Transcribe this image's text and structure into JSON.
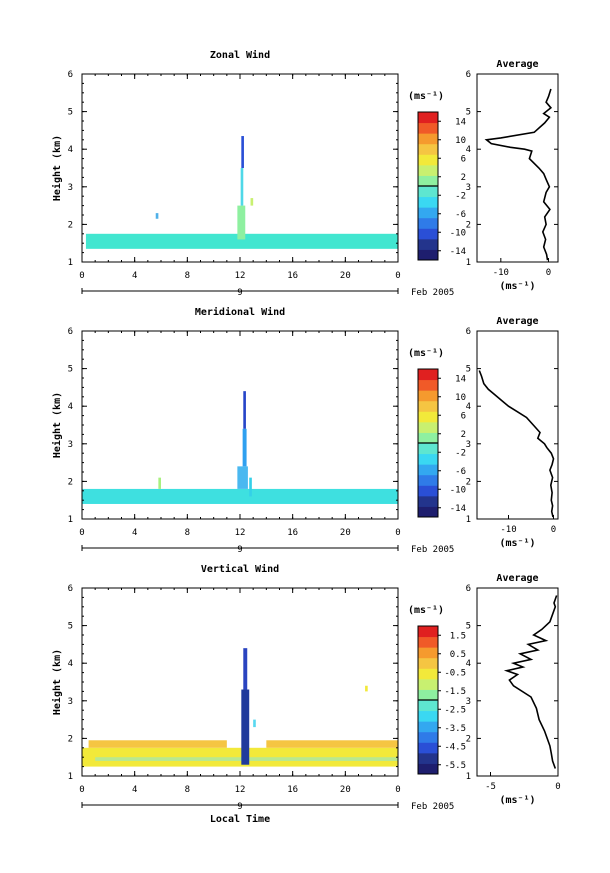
{
  "chart_data": [
    {
      "type": "heatmap",
      "title": "Zonal Wind",
      "xlabel": "",
      "ylabel": "Height (km)",
      "xlim": [
        0,
        24
      ],
      "ylim": [
        1,
        6
      ],
      "xticks": [
        "0",
        "4",
        "8",
        "12",
        "16",
        "20",
        "0"
      ],
      "yticks": [
        "1",
        "2",
        "3",
        "4",
        "5",
        "6"
      ],
      "date_label": "9",
      "month_label": "Feb 2005",
      "colorbar": {
        "unit": "(ms⁻¹)",
        "min": -16,
        "max": 16,
        "ticks": [
          "14",
          "10",
          "6",
          "2",
          "-2",
          "-6",
          "-10",
          "-14"
        ]
      },
      "layers": [
        {
          "x0": 0.3,
          "x1": 24,
          "y0": 1.35,
          "y1": 1.75,
          "color": "#42e6d0"
        },
        {
          "x0": 11.8,
          "x1": 12.4,
          "y0": 1.6,
          "y1": 2.5,
          "color": "#8ef0a0"
        },
        {
          "x0": 12.05,
          "x1": 12.25,
          "y0": 2.5,
          "y1": 3.5,
          "color": "#4fd8e8"
        },
        {
          "x0": 12.1,
          "x1": 12.3,
          "y0": 3.5,
          "y1": 4.35,
          "color": "#2a4fd6"
        },
        {
          "x0": 5.6,
          "x1": 5.8,
          "y0": 2.15,
          "y1": 2.3,
          "color": "#4fb0e8"
        },
        {
          "x0": 12.8,
          "x1": 13.0,
          "y0": 2.5,
          "y1": 2.7,
          "color": "#c8f070"
        }
      ],
      "profile": {
        "title": "Average",
        "xlabel": "(ms⁻¹)",
        "xlim": [
          -15,
          2
        ],
        "xticks": [
          "-10",
          "0"
        ],
        "x": [
          0.5,
          0.0,
          -0.5,
          0.5,
          -1.0,
          0.2,
          -0.8,
          -3.0,
          -10.0,
          -13.0,
          -12.0,
          -8.0,
          -5.0,
          -3.5,
          -4.0,
          -2.0,
          -1.0,
          -0.5,
          0.2,
          -0.5,
          -1.0,
          0.3,
          -0.8,
          -0.5,
          -1.2,
          -0.6,
          -1.0,
          -0.4,
          -0.2
        ],
        "y": [
          5.6,
          5.4,
          5.25,
          5.1,
          4.95,
          4.85,
          4.7,
          4.45,
          4.3,
          4.25,
          4.15,
          4.05,
          4.0,
          3.95,
          3.75,
          3.5,
          3.35,
          3.2,
          3.0,
          2.85,
          2.6,
          2.4,
          2.2,
          2.0,
          1.8,
          1.6,
          1.4,
          1.2,
          1.05
        ]
      }
    },
    {
      "type": "heatmap",
      "title": "Meridional Wind",
      "xlabel": "",
      "ylabel": "Height (km)",
      "xlim": [
        0,
        24
      ],
      "ylim": [
        1,
        6
      ],
      "xticks": [
        "0",
        "4",
        "8",
        "12",
        "16",
        "20",
        "0"
      ],
      "yticks": [
        "1",
        "2",
        "3",
        "4",
        "5",
        "6"
      ],
      "date_label": "9",
      "month_label": "Feb 2005",
      "colorbar": {
        "unit": "(ms⁻¹)",
        "min": -16,
        "max": 16,
        "ticks": [
          "14",
          "10",
          "6",
          "2",
          "-2",
          "-6",
          "-10",
          "-14"
        ]
      },
      "layers": [
        {
          "x0": 0.0,
          "x1": 24,
          "y0": 1.4,
          "y1": 1.8,
          "color": "#3ee0e0"
        },
        {
          "x0": 5.8,
          "x1": 6.0,
          "y0": 1.8,
          "y1": 2.1,
          "color": "#a8f080"
        },
        {
          "x0": 11.8,
          "x1": 12.6,
          "y0": 1.8,
          "y1": 2.4,
          "color": "#4ab8f0"
        },
        {
          "x0": 12.2,
          "x1": 12.5,
          "y0": 2.4,
          "y1": 3.4,
          "color": "#2fa0f0"
        },
        {
          "x0": 12.25,
          "x1": 12.45,
          "y0": 3.4,
          "y1": 4.4,
          "color": "#2645c8"
        },
        {
          "x0": 12.7,
          "x1": 12.9,
          "y0": 1.6,
          "y1": 2.1,
          "color": "#34d0e8"
        }
      ],
      "profile": {
        "title": "Average",
        "xlabel": "(ms⁻¹)",
        "xlim": [
          -17,
          1
        ],
        "xticks": [
          "-10",
          "0"
        ],
        "x": [
          -16.5,
          -16.0,
          -15.5,
          -14.5,
          -13.0,
          -11.5,
          -10.0,
          -8.0,
          -6.0,
          -4.5,
          -3.0,
          -3.5,
          -2.0,
          -1.5,
          -0.5,
          0.0,
          -0.3,
          -0.8,
          -0.2,
          -0.6,
          -0.3,
          -0.5,
          -0.2,
          -0.4,
          -0.1
        ],
        "y": [
          4.95,
          4.8,
          4.6,
          4.45,
          4.3,
          4.15,
          4.0,
          3.85,
          3.7,
          3.5,
          3.3,
          3.15,
          3.0,
          2.9,
          2.75,
          2.6,
          2.45,
          2.3,
          2.1,
          1.9,
          1.7,
          1.5,
          1.35,
          1.2,
          1.05
        ]
      }
    },
    {
      "type": "heatmap",
      "title": "Vertical Wind",
      "xlabel": "Local Time",
      "ylabel": "Height (km)",
      "xlim": [
        0,
        24
      ],
      "ylim": [
        1,
        6
      ],
      "xticks": [
        "0",
        "4",
        "8",
        "12",
        "16",
        "20",
        "0"
      ],
      "yticks": [
        "1",
        "2",
        "3",
        "4",
        "5",
        "6"
      ],
      "date_label": "9",
      "month_label": "Feb 2005",
      "colorbar": {
        "unit": "(ms⁻¹)",
        "min": -6,
        "max": 2,
        "ticks": [
          "1.5",
          "0.5",
          "-0.5",
          "-1.5",
          "-2.5",
          "-3.5",
          "-4.5",
          "-5.5"
        ]
      },
      "layers": [
        {
          "x0": 0.0,
          "x1": 24,
          "y0": 1.25,
          "y1": 1.75,
          "color": "#f2e93a"
        },
        {
          "x0": 0.5,
          "x1": 11.0,
          "y0": 1.75,
          "y1": 1.95,
          "color": "#f5c542"
        },
        {
          "x0": 14.0,
          "x1": 24,
          "y0": 1.75,
          "y1": 1.95,
          "color": "#f5c542"
        },
        {
          "x0": 1.0,
          "x1": 24,
          "y0": 1.4,
          "y1": 1.5,
          "color": "#b8e890"
        },
        {
          "x0": 12.1,
          "x1": 12.7,
          "y0": 1.3,
          "y1": 3.3,
          "color": "#203a9c"
        },
        {
          "x0": 12.25,
          "x1": 12.55,
          "y0": 3.3,
          "y1": 4.4,
          "color": "#2a44c0"
        },
        {
          "x0": 13.0,
          "x1": 13.2,
          "y0": 2.3,
          "y1": 2.5,
          "color": "#58d8f0"
        },
        {
          "x0": 21.5,
          "x1": 21.7,
          "y0": 3.25,
          "y1": 3.4,
          "color": "#f2e93a"
        }
      ],
      "profile": {
        "title": "Average",
        "xlabel": "(ms⁻¹)",
        "xlim": [
          -6,
          0
        ],
        "xticks": [
          "-5",
          "0"
        ],
        "x": [
          -0.1,
          -0.3,
          -0.2,
          -0.6,
          -1.2,
          -1.8,
          -0.9,
          -2.2,
          -1.5,
          -2.8,
          -2.0,
          -3.3,
          -2.6,
          -3.8,
          -3.0,
          -3.6,
          -3.3,
          -2.0,
          -1.6,
          -1.4,
          -1.0,
          -0.8,
          -0.6,
          -0.5,
          -0.4,
          -0.2
        ],
        "y": [
          5.8,
          5.6,
          5.5,
          5.1,
          4.9,
          4.75,
          4.6,
          4.5,
          4.35,
          4.25,
          4.1,
          4.0,
          3.9,
          3.8,
          3.7,
          3.55,
          3.4,
          3.1,
          2.8,
          2.5,
          2.2,
          2.0,
          1.8,
          1.6,
          1.4,
          1.2
        ]
      }
    }
  ]
}
